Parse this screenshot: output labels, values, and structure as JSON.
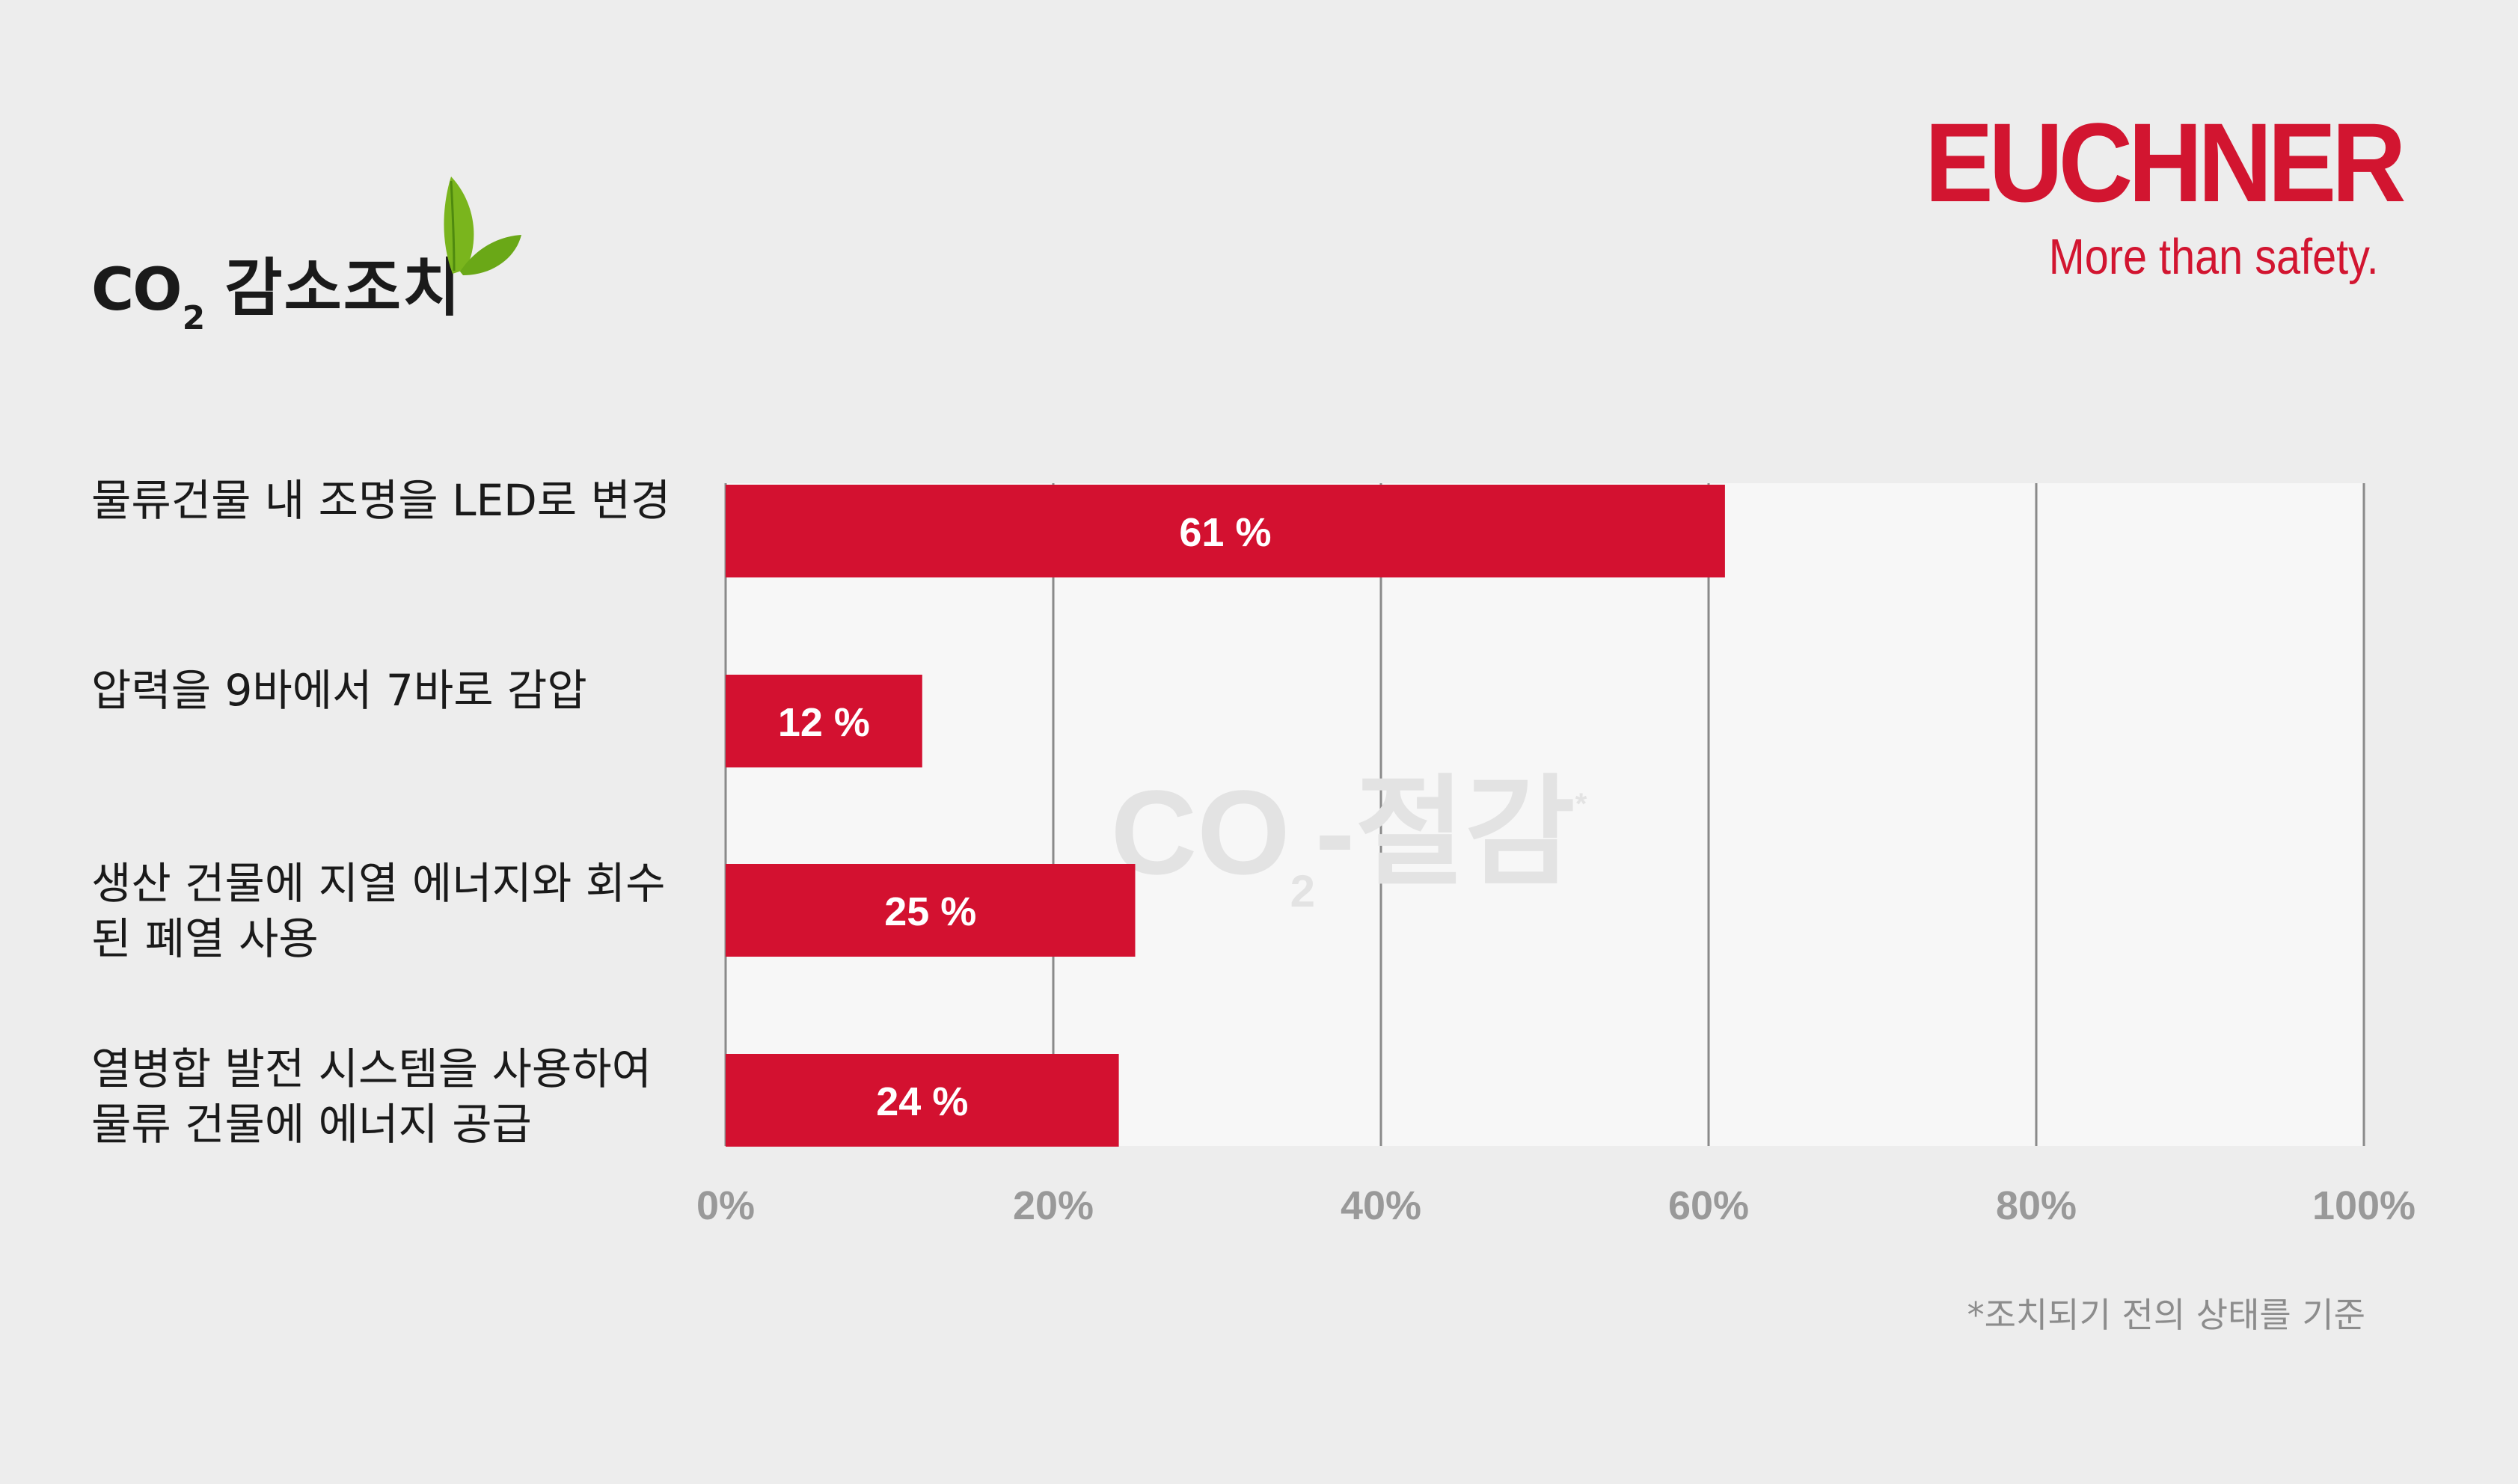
{
  "header": {
    "title_co": "CO",
    "title_sub": "2",
    "title_ko": "감소조치",
    "leaf_icon": "leaf-icon"
  },
  "brand": {
    "logo": "EUCHNER",
    "tagline": "More than safety."
  },
  "chart_data": {
    "type": "bar",
    "orientation": "horizontal",
    "categories": [
      "물류건물 내 조명을 LED로 변경",
      "압력을 9바에서 7바로 감압",
      "생산 건물에 지열 에너지와 회수 된 폐열 사용",
      "열병합 발전 시스템을 사용하여 물류 건물에 에너지 공급"
    ],
    "category_lines": [
      [
        "물류건물 내 조명을 LED로 변경"
      ],
      [
        "압력을 9바에서 7바로 감압"
      ],
      [
        "생산 건물에 지열 에너지와 회수",
        "된 폐열 사용"
      ],
      [
        "열병합 발전 시스템을 사용하여",
        "물류 건물에 에너지 공급"
      ]
    ],
    "series": [
      {
        "values": [
          61,
          12,
          25,
          24
        ]
      }
    ],
    "data_labels": [
      "61 %",
      "12 %",
      "25 %",
      "24 %"
    ],
    "xlim": [
      0,
      100
    ],
    "x_ticks": [
      0,
      20,
      40,
      60,
      80,
      100
    ],
    "x_tick_labels": [
      "0%",
      "20%",
      "40%",
      "60%",
      "80%",
      "100%"
    ],
    "xlabel_parts": {
      "main": "CO",
      "sub": "2",
      "tail": "-절감",
      "mark": "*"
    },
    "grid": true,
    "colors": {
      "bar": "#d31130",
      "plot_bg": "#f7f7f7",
      "grid": "#8a8a8a",
      "tick_text": "#999999",
      "watermark": "#e3e3e3"
    }
  },
  "footnote": "*조치되기 전의 상태를 기준"
}
